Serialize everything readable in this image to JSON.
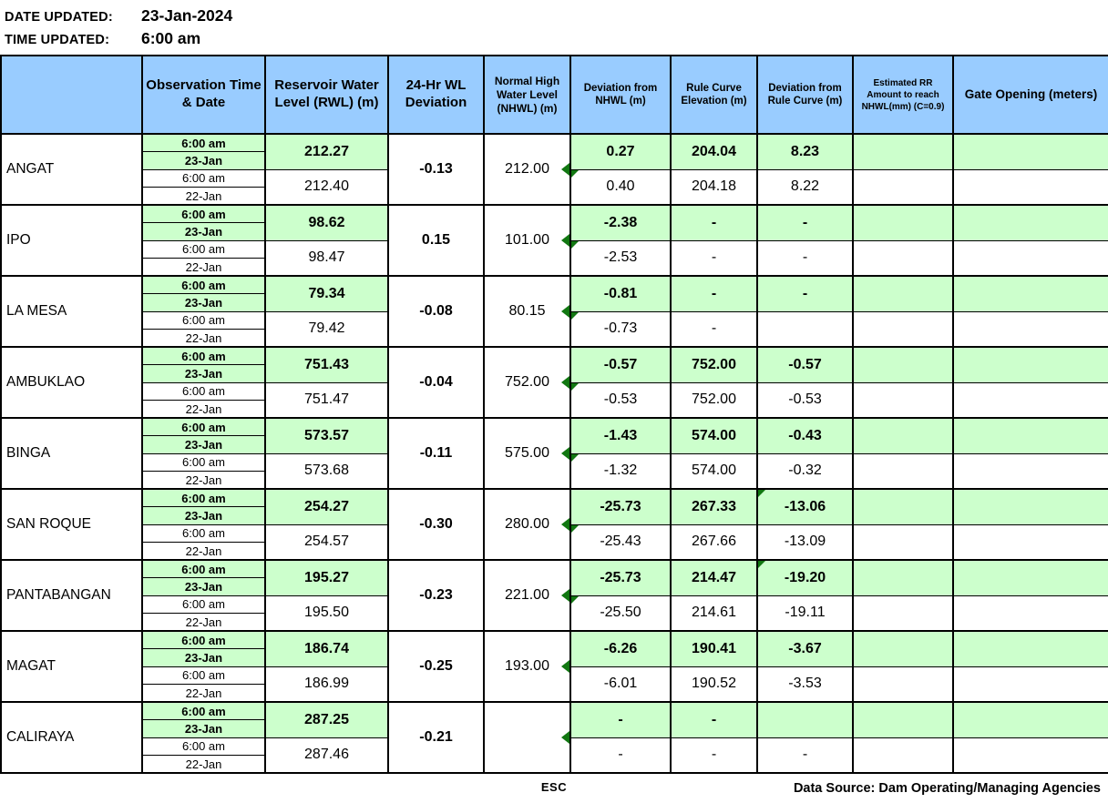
{
  "meta": {
    "date_label": "DATE UPDATED:",
    "date_value": "23-Jan-2024",
    "time_label": "TIME UPDATED:",
    "time_value": "6:00 am"
  },
  "colors": {
    "header_bg": "#99CCFF",
    "highlight_bg": "#CCFFCC",
    "comment_flag": "#117711",
    "border": "#000000"
  },
  "table": {
    "headers": [
      "",
      "Observation Time & Date",
      "Reservoir Water Level (RWL) (m)",
      "24-Hr WL Deviation",
      "Normal High Water Level (NHWL) (m)",
      "Deviation from NHWL (m)",
      "Rule Curve Elevation (m)",
      "Deviation from Rule Curve (m)",
      "Estimated RR Amount to reach NHWL(mm) (C=0.9)",
      "Gate Opening (meters)"
    ],
    "rows": [
      {
        "name": "ANGAT",
        "wl_dev_24hr": "-0.13",
        "nhwl": "212.00",
        "current": {
          "time": "6:00 am",
          "date": "23-Jan",
          "rwl": "212.27",
          "dev_nhwl": "0.27",
          "rule_curve": "204.04",
          "dev_rule_curve": "8.23",
          "est_rr": "",
          "gate": ""
        },
        "previous": {
          "time": "6:00 am",
          "date": "22-Jan",
          "rwl": "212.40",
          "dev_nhwl": "0.40",
          "rule_curve": "204.18",
          "dev_rule_curve": "8.22",
          "est_rr": "",
          "gate": ""
        },
        "flags": {
          "nhwl": true,
          "prev_dev_nhwl": true,
          "cur_dev_rule": false
        }
      },
      {
        "name": "IPO",
        "wl_dev_24hr": "0.15",
        "nhwl": "101.00",
        "current": {
          "time": "6:00 am",
          "date": "23-Jan",
          "rwl": "98.62",
          "dev_nhwl": "-2.38",
          "rule_curve": "-",
          "dev_rule_curve": "-",
          "est_rr": "",
          "gate": ""
        },
        "previous": {
          "time": "6:00 am",
          "date": "22-Jan",
          "rwl": "98.47",
          "dev_nhwl": "-2.53",
          "rule_curve": "-",
          "dev_rule_curve": "-",
          "est_rr": "",
          "gate": ""
        },
        "flags": {
          "nhwl": true,
          "prev_dev_nhwl": true,
          "cur_dev_rule": false
        }
      },
      {
        "name": "LA MESA",
        "wl_dev_24hr": "-0.08",
        "nhwl": "80.15",
        "current": {
          "time": "6:00 am",
          "date": "23-Jan",
          "rwl": "79.34",
          "dev_nhwl": "-0.81",
          "rule_curve": "-",
          "dev_rule_curve": "-",
          "est_rr": "",
          "gate": ""
        },
        "previous": {
          "time": "6:00 am",
          "date": "22-Jan",
          "rwl": "79.42",
          "dev_nhwl": "-0.73",
          "rule_curve": "-",
          "dev_rule_curve": "",
          "est_rr": "",
          "gate": ""
        },
        "flags": {
          "nhwl": true,
          "prev_dev_nhwl": true,
          "cur_dev_rule": false
        }
      },
      {
        "name": "AMBUKLAO",
        "wl_dev_24hr": "-0.04",
        "nhwl": "752.00",
        "current": {
          "time": "6:00 am",
          "date": "23-Jan",
          "rwl": "751.43",
          "dev_nhwl": "-0.57",
          "rule_curve": "752.00",
          "dev_rule_curve": "-0.57",
          "est_rr": "",
          "gate": ""
        },
        "previous": {
          "time": "6:00 am",
          "date": "22-Jan",
          "rwl": "751.47",
          "dev_nhwl": "-0.53",
          "rule_curve": "752.00",
          "dev_rule_curve": "-0.53",
          "est_rr": "",
          "gate": ""
        },
        "flags": {
          "nhwl": true,
          "prev_dev_nhwl": true,
          "cur_dev_rule": false
        }
      },
      {
        "name": "BINGA",
        "wl_dev_24hr": "-0.11",
        "nhwl": "575.00",
        "current": {
          "time": "6:00 am",
          "date": "23-Jan",
          "rwl": "573.57",
          "dev_nhwl": "-1.43",
          "rule_curve": "574.00",
          "dev_rule_curve": "-0.43",
          "est_rr": "",
          "gate": ""
        },
        "previous": {
          "time": "6:00 am",
          "date": "22-Jan",
          "rwl": "573.68",
          "dev_nhwl": "-1.32",
          "rule_curve": "574.00",
          "dev_rule_curve": "-0.32",
          "est_rr": "",
          "gate": ""
        },
        "flags": {
          "nhwl": true,
          "prev_dev_nhwl": true,
          "cur_dev_rule": false
        }
      },
      {
        "name": "SAN ROQUE",
        "wl_dev_24hr": "-0.30",
        "nhwl": "280.00",
        "current": {
          "time": "6:00 am",
          "date": "23-Jan",
          "rwl": "254.27",
          "dev_nhwl": "-25.73",
          "rule_curve": "267.33",
          "dev_rule_curve": "-13.06",
          "est_rr": "",
          "gate": ""
        },
        "previous": {
          "time": "6:00 am",
          "date": "22-Jan",
          "rwl": "254.57",
          "dev_nhwl": "-25.43",
          "rule_curve": "267.66",
          "dev_rule_curve": "-13.09",
          "est_rr": "",
          "gate": ""
        },
        "flags": {
          "nhwl": true,
          "prev_dev_nhwl": true,
          "cur_dev_rule": true
        }
      },
      {
        "name": "PANTABANGAN",
        "wl_dev_24hr": "-0.23",
        "nhwl": "221.00",
        "current": {
          "time": "6:00 am",
          "date": "23-Jan",
          "rwl": "195.27",
          "dev_nhwl": "-25.73",
          "rule_curve": "214.47",
          "dev_rule_curve": "-19.20",
          "est_rr": "",
          "gate": ""
        },
        "previous": {
          "time": "6:00 am",
          "date": "22-Jan",
          "rwl": "195.50",
          "dev_nhwl": "-25.50",
          "rule_curve": "214.61",
          "dev_rule_curve": "-19.11",
          "est_rr": "",
          "gate": ""
        },
        "flags": {
          "nhwl": true,
          "prev_dev_nhwl": true,
          "cur_dev_rule": true
        }
      },
      {
        "name": "MAGAT",
        "wl_dev_24hr": "-0.25",
        "nhwl": "193.00",
        "current": {
          "time": "6:00 am",
          "date": "23-Jan",
          "rwl": "186.74",
          "dev_nhwl": "-6.26",
          "rule_curve": "190.41",
          "dev_rule_curve": "-3.67",
          "est_rr": "",
          "gate": ""
        },
        "previous": {
          "time": "6:00 am",
          "date": "22-Jan",
          "rwl": "186.99",
          "dev_nhwl": "-6.01",
          "rule_curve": "190.52",
          "dev_rule_curve": "-3.53",
          "est_rr": "",
          "gate": ""
        },
        "flags": {
          "nhwl": true,
          "prev_dev_nhwl": false,
          "cur_dev_rule": false
        }
      },
      {
        "name": "CALIRAYA",
        "wl_dev_24hr": "-0.21",
        "nhwl": "",
        "current": {
          "time": "6:00 am",
          "date": "23-Jan",
          "rwl": "287.25",
          "dev_nhwl": "-",
          "rule_curve": "-",
          "dev_rule_curve": "",
          "est_rr": "",
          "gate": ""
        },
        "previous": {
          "time": "6:00 am",
          "date": "22-Jan",
          "rwl": "287.46",
          "dev_nhwl": "-",
          "rule_curve": "-",
          "dev_rule_curve": "-",
          "est_rr": "",
          "gate": ""
        },
        "flags": {
          "nhwl": true,
          "prev_dev_nhwl": false,
          "cur_dev_rule": false
        }
      }
    ]
  },
  "footer": {
    "esc_label": "ESC",
    "data_source": "Data Source: Dam Operating/Managing  Agencies"
  }
}
